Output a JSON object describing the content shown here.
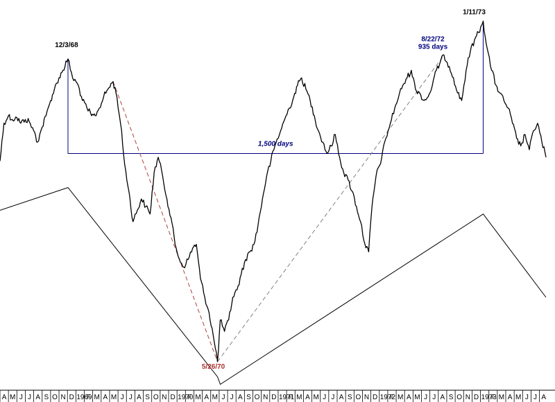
{
  "chart_data": {
    "type": "line",
    "title": "",
    "xlabel": "",
    "ylabel": "",
    "x_axis": {
      "month_labels": [
        "A",
        "M",
        "J",
        "J",
        "A",
        "S",
        "O",
        "N",
        "D",
        "1969",
        "F",
        "M",
        "A",
        "M",
        "J",
        "J",
        "A",
        "S",
        "O",
        "N",
        "D",
        "1970",
        "F",
        "M",
        "A",
        "M",
        "J",
        "J",
        "A",
        "S",
        "O",
        "N",
        "D",
        "1971",
        "F",
        "M",
        "A",
        "M",
        "J",
        "J",
        "A",
        "S",
        "O",
        "N",
        "D",
        "1972",
        "F",
        "M",
        "A",
        "M",
        "J",
        "J",
        "A",
        "S",
        "O",
        "N",
        "D",
        "1973",
        "F",
        "M",
        "A",
        "M",
        "J",
        "J",
        "A"
      ],
      "start": "1968-04",
      "end": "1973-08"
    },
    "series": [
      {
        "name": "",
        "color": "#000000",
        "points": [
          [
            "1968-04-01",
            -2.0
          ],
          [
            "1968-04-15",
            8.0
          ],
          [
            "1968-05-01",
            10.0
          ],
          [
            "1968-05-15",
            9.0
          ],
          [
            "1968-06-01",
            9.5
          ],
          [
            "1968-06-15",
            8.0
          ],
          [
            "1968-07-01",
            9.0
          ],
          [
            "1968-07-15",
            8.5
          ],
          [
            "1968-08-01",
            6.0
          ],
          [
            "1968-08-15",
            3.0
          ],
          [
            "1968-09-01",
            7.0
          ],
          [
            "1968-09-15",
            10.0
          ],
          [
            "1968-10-01",
            14.0
          ],
          [
            "1968-10-15",
            17.0
          ],
          [
            "1968-11-01",
            20.0
          ],
          [
            "1968-11-15",
            22.0
          ],
          [
            "1968-12-03",
            25.0
          ],
          [
            "1968-12-20",
            20.0
          ],
          [
            "1969-01-10",
            18.0
          ],
          [
            "1969-01-25",
            14.0
          ],
          [
            "1969-02-10",
            12.0
          ],
          [
            "1969-02-25",
            10.0
          ],
          [
            "1969-03-10",
            10.0
          ],
          [
            "1969-03-25",
            12.0
          ],
          [
            "1969-04-10",
            15.0
          ],
          [
            "1969-04-25",
            17.0
          ],
          [
            "1969-05-14",
            19.0
          ],
          [
            "1969-05-28",
            15.0
          ],
          [
            "1969-06-10",
            8.0
          ],
          [
            "1969-06-25",
            -3.0
          ],
          [
            "1969-07-10",
            -10.0
          ],
          [
            "1969-07-25",
            -18.0
          ],
          [
            "1969-08-10",
            -15.0
          ],
          [
            "1969-08-25",
            -12.0
          ],
          [
            "1969-09-10",
            -14.0
          ],
          [
            "1969-09-25",
            -16.0
          ],
          [
            "1969-10-10",
            -5.0
          ],
          [
            "1969-10-25",
            -1.0
          ],
          [
            "1969-11-10",
            -6.0
          ],
          [
            "1969-11-25",
            -12.0
          ],
          [
            "1969-12-10",
            -17.0
          ],
          [
            "1969-12-25",
            -24.0
          ],
          [
            "1970-01-10",
            -28.0
          ],
          [
            "1970-01-25",
            -30.0
          ],
          [
            "1970-02-10",
            -28.0
          ],
          [
            "1970-02-25",
            -25.0
          ],
          [
            "1970-03-10",
            -24.0
          ],
          [
            "1970-03-25",
            -33.0
          ],
          [
            "1970-04-10",
            -38.0
          ],
          [
            "1970-04-25",
            -42.0
          ],
          [
            "1970-05-10",
            -48.0
          ],
          [
            "1970-05-26",
            -55.0
          ],
          [
            "1970-06-05",
            -44.0
          ],
          [
            "1970-06-20",
            -47.0
          ],
          [
            "1970-07-05",
            -44.0
          ],
          [
            "1970-07-20",
            -38.0
          ],
          [
            "1970-08-05",
            -36.0
          ],
          [
            "1970-08-20",
            -32.0
          ],
          [
            "1970-09-05",
            -28.0
          ],
          [
            "1970-09-20",
            -26.0
          ],
          [
            "1970-10-05",
            -24.0
          ],
          [
            "1970-10-20",
            -19.0
          ],
          [
            "1970-11-05",
            -12.0
          ],
          [
            "1970-11-20",
            -6.0
          ],
          [
            "1970-12-05",
            -2.0
          ],
          [
            "1970-12-20",
            2.0
          ],
          [
            "1971-01-10",
            6.0
          ],
          [
            "1971-01-25",
            9.0
          ],
          [
            "1971-02-10",
            12.0
          ],
          [
            "1971-02-25",
            15.0
          ],
          [
            "1971-03-10",
            18.0
          ],
          [
            "1971-03-25",
            20.0
          ],
          [
            "1971-04-10",
            17.0
          ],
          [
            "1971-04-25",
            14.0
          ],
          [
            "1971-05-10",
            10.0
          ],
          [
            "1971-05-25",
            6.0
          ],
          [
            "1971-06-10",
            3.0
          ],
          [
            "1971-06-25",
            0.0
          ],
          [
            "1971-07-10",
            2.0
          ],
          [
            "1971-07-25",
            5.0
          ],
          [
            "1971-08-10",
            -1.0
          ],
          [
            "1971-08-25",
            -5.0
          ],
          [
            "1971-09-10",
            -7.0
          ],
          [
            "1971-09-25",
            -10.0
          ],
          [
            "1971-10-10",
            -14.0
          ],
          [
            "1971-10-25",
            -18.0
          ],
          [
            "1971-11-10",
            -24.0
          ],
          [
            "1971-11-23",
            -26.0
          ],
          [
            "1971-12-05",
            -14.0
          ],
          [
            "1971-12-20",
            -6.0
          ],
          [
            "1972-01-10",
            -1.0
          ],
          [
            "1972-01-25",
            4.0
          ],
          [
            "1972-02-10",
            8.0
          ],
          [
            "1972-02-25",
            12.0
          ],
          [
            "1972-03-10",
            15.0
          ],
          [
            "1972-03-25",
            18.0
          ],
          [
            "1972-04-10",
            20.0
          ],
          [
            "1972-04-25",
            22.0
          ],
          [
            "1972-05-10",
            17.0
          ],
          [
            "1972-05-25",
            16.0
          ],
          [
            "1972-06-10",
            14.0
          ],
          [
            "1972-06-25",
            15.0
          ],
          [
            "1972-07-10",
            18.0
          ],
          [
            "1972-07-25",
            22.0
          ],
          [
            "1972-08-22",
            26.0
          ],
          [
            "1972-09-10",
            23.0
          ],
          [
            "1972-09-25",
            20.0
          ],
          [
            "1972-10-10",
            16.0
          ],
          [
            "1972-10-25",
            14.0
          ],
          [
            "1972-11-10",
            22.0
          ],
          [
            "1972-11-25",
            27.0
          ],
          [
            "1972-12-10",
            30.0
          ],
          [
            "1972-12-25",
            32.0
          ],
          [
            "1973-01-11",
            35.0
          ],
          [
            "1973-01-25",
            28.0
          ],
          [
            "1973-02-10",
            22.0
          ],
          [
            "1973-02-25",
            18.0
          ],
          [
            "1973-03-10",
            16.0
          ],
          [
            "1973-03-25",
            14.0
          ],
          [
            "1973-04-10",
            12.0
          ],
          [
            "1973-04-25",
            8.0
          ],
          [
            "1973-05-10",
            4.0
          ],
          [
            "1973-05-25",
            2.0
          ],
          [
            "1973-06-10",
            5.0
          ],
          [
            "1973-06-25",
            1.0
          ],
          [
            "1973-07-10",
            6.0
          ],
          [
            "1973-07-25",
            8.0
          ],
          [
            "1973-08-10",
            3.0
          ],
          [
            "1973-08-25",
            -1.0
          ]
        ]
      }
    ],
    "horizontal_reference": {
      "from": "1968-12-03",
      "to": "1973-01-11",
      "y": 0,
      "label": "1,500 days",
      "color": "#000080"
    },
    "dashed_trendlines": [
      {
        "from": [
          "1969-05-14",
          19.0
        ],
        "to": [
          "1970-05-26",
          -55.0
        ],
        "color": "#b04040"
      },
      {
        "from": [
          "1970-05-26",
          -55.0
        ],
        "to": [
          "1972-08-22",
          26.0
        ],
        "color": "#808080"
      }
    ],
    "cycle_lines": [
      {
        "points": [
          [
            "1968-04-01",
            -15.0
          ],
          [
            "1968-12-03",
            -9.0
          ],
          [
            "1970-05-26",
            -59.0
          ],
          [
            "1970-06-05",
            -61.0
          ],
          [
            "1973-01-11",
            -16.0
          ],
          [
            "1973-08-25",
            -38.0
          ]
        ],
        "color": "#000000"
      }
    ],
    "annotations": [
      {
        "text": "12/3/68",
        "at": [
          "1968-12-03",
          25.0
        ],
        "color": "#000000",
        "italic": false
      },
      {
        "text": "5/26/70",
        "at": [
          "1970-05-26",
          -55.0
        ],
        "color": "#b03030",
        "italic": false
      },
      {
        "text": "8/22/72",
        "at": [
          "1972-08-22",
          26.0
        ],
        "color": "#000080",
        "italic": false
      },
      {
        "text": "935 days",
        "at": [
          "1972-08-22",
          26.0
        ],
        "color": "#000080",
        "italic": false
      },
      {
        "text": "1/11/73",
        "at": [
          "1973-01-11",
          35.0
        ],
        "color": "#000000",
        "italic": false
      }
    ],
    "ylim": [
      -62,
      38
    ],
    "grid": false,
    "legend": "none"
  }
}
